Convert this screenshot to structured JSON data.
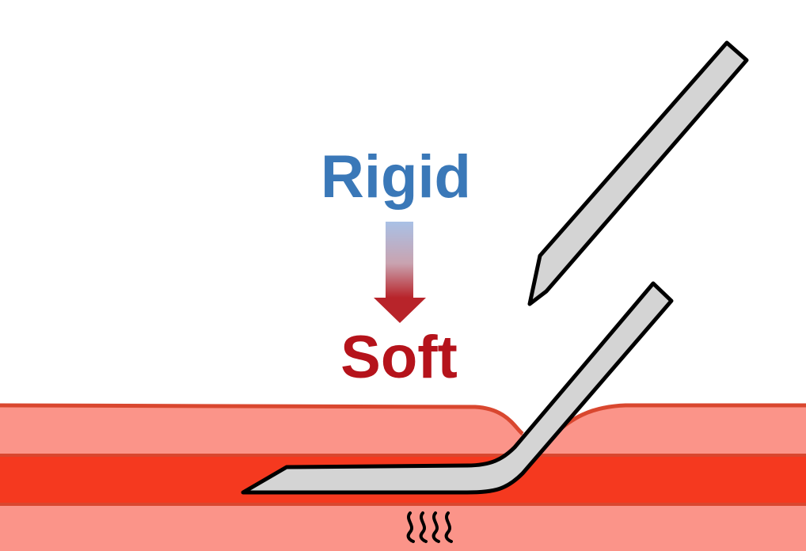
{
  "labels": {
    "rigid": "Rigid",
    "soft": "Soft"
  },
  "colors": {
    "rigid_text": "#3a78b8",
    "soft_text": "#b5131b",
    "arrow_top": "#a9c1e6",
    "arrow_bottom": "#b8242a",
    "tissue_outer": "#fb9489",
    "tissue_outline": "#d9472f",
    "vessel": "#f5391f",
    "needle_fill": "#d4d4d4",
    "needle_stroke": "#000000"
  },
  "icons": {
    "rigid_needle": "rigid-needle-icon",
    "soft_needle": "soft-needle-icon",
    "gradient_arrow": "down-arrow-icon",
    "bleeding": "wavy-lines-icon"
  }
}
